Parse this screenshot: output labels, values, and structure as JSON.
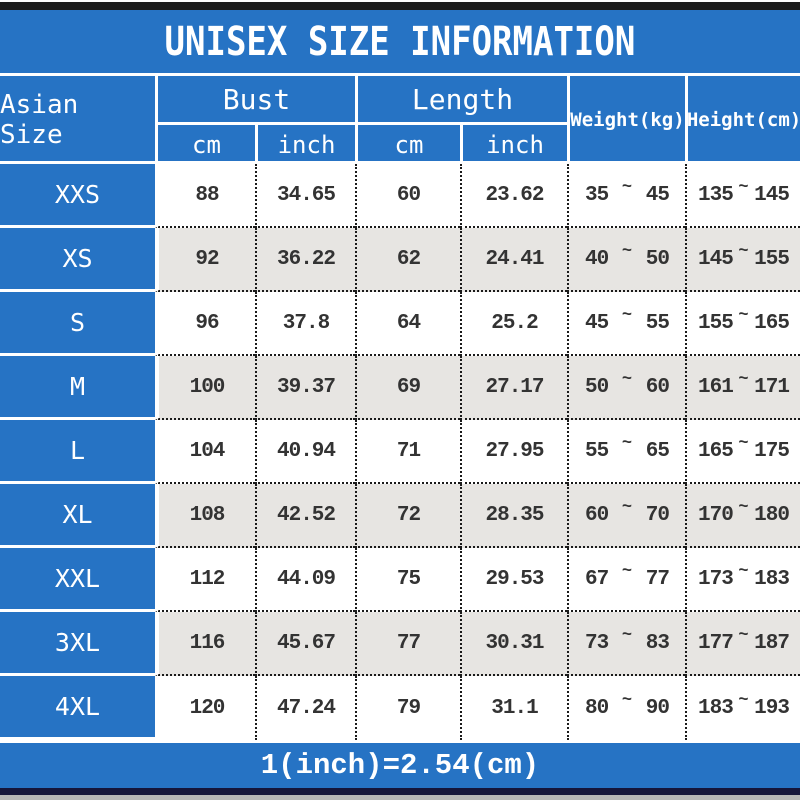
{
  "title": "UNISEX SIZE INFORMATION",
  "colors": {
    "blue": "#2673c4",
    "row": "#ffffff",
    "row_alt": "#e7e5e2"
  },
  "table": {
    "separator": "~",
    "columns": {
      "size": "Asian Size",
      "bust": "Bust",
      "length": "Length",
      "weight": "Weight(kg)",
      "height": "Height(cm)",
      "bust_cm": "cm",
      "bust_inch": "inch",
      "length_cm": "cm",
      "length_inch": "inch"
    },
    "rows": [
      {
        "size": "XXS",
        "bust_cm": "88",
        "bust_inch": "34.65",
        "length_cm": "60",
        "length_inch": "23.62",
        "weight_min": "35",
        "weight_max": "45",
        "height_min": "135",
        "height_max": "145"
      },
      {
        "size": "XS",
        "bust_cm": "92",
        "bust_inch": "36.22",
        "length_cm": "62",
        "length_inch": "24.41",
        "weight_min": "40",
        "weight_max": "50",
        "height_min": "145",
        "height_max": "155"
      },
      {
        "size": "S",
        "bust_cm": "96",
        "bust_inch": "37.8",
        "length_cm": "64",
        "length_inch": "25.2",
        "weight_min": "45",
        "weight_max": "55",
        "height_min": "155",
        "height_max": "165"
      },
      {
        "size": "M",
        "bust_cm": "100",
        "bust_inch": "39.37",
        "length_cm": "69",
        "length_inch": "27.17",
        "weight_min": "50",
        "weight_max": "60",
        "height_min": "161",
        "height_max": "171"
      },
      {
        "size": "L",
        "bust_cm": "104",
        "bust_inch": "40.94",
        "length_cm": "71",
        "length_inch": "27.95",
        "weight_min": "55",
        "weight_max": "65",
        "height_min": "165",
        "height_max": "175"
      },
      {
        "size": "XL",
        "bust_cm": "108",
        "bust_inch": "42.52",
        "length_cm": "72",
        "length_inch": "28.35",
        "weight_min": "60",
        "weight_max": "70",
        "height_min": "170",
        "height_max": "180"
      },
      {
        "size": "XXL",
        "bust_cm": "112",
        "bust_inch": "44.09",
        "length_cm": "75",
        "length_inch": "29.53",
        "weight_min": "67",
        "weight_max": "77",
        "height_min": "173",
        "height_max": "183"
      },
      {
        "size": "3XL",
        "bust_cm": "116",
        "bust_inch": "45.67",
        "length_cm": "77",
        "length_inch": "30.31",
        "weight_min": "73",
        "weight_max": "83",
        "height_min": "177",
        "height_max": "187"
      },
      {
        "size": "4XL",
        "bust_cm": "120",
        "bust_inch": "47.24",
        "length_cm": "79",
        "length_inch": "31.1",
        "weight_min": "80",
        "weight_max": "90",
        "height_min": "183",
        "height_max": "193"
      }
    ]
  },
  "footer": {
    "note": "1(inch)=2.54(cm)"
  },
  "chart_data": {
    "type": "table",
    "title": "UNISEX SIZE INFORMATION",
    "columns": [
      "Asian Size",
      "Bust cm",
      "Bust inch",
      "Length cm",
      "Length inch",
      "Weight(kg)",
      "Height(cm)"
    ],
    "rows": [
      [
        "XXS",
        88,
        34.65,
        60,
        23.62,
        "35~45",
        "135~145"
      ],
      [
        "XS",
        92,
        36.22,
        62,
        24.41,
        "40~50",
        "145~155"
      ],
      [
        "S",
        96,
        37.8,
        64,
        25.2,
        "45~55",
        "155~165"
      ],
      [
        "M",
        100,
        39.37,
        69,
        27.17,
        "50~60",
        "161~171"
      ],
      [
        "L",
        104,
        40.94,
        71,
        27.95,
        "55~65",
        "165~175"
      ],
      [
        "XL",
        108,
        42.52,
        72,
        28.35,
        "60~70",
        "170~180"
      ],
      [
        "XXL",
        112,
        44.09,
        75,
        29.53,
        "67~77",
        "173~183"
      ],
      [
        "3XL",
        116,
        45.67,
        77,
        30.31,
        "73~83",
        "177~187"
      ],
      [
        "4XL",
        120,
        47.24,
        79,
        31.1,
        "80~90",
        "183~193"
      ]
    ],
    "note": "1(inch)=2.54(cm)"
  }
}
